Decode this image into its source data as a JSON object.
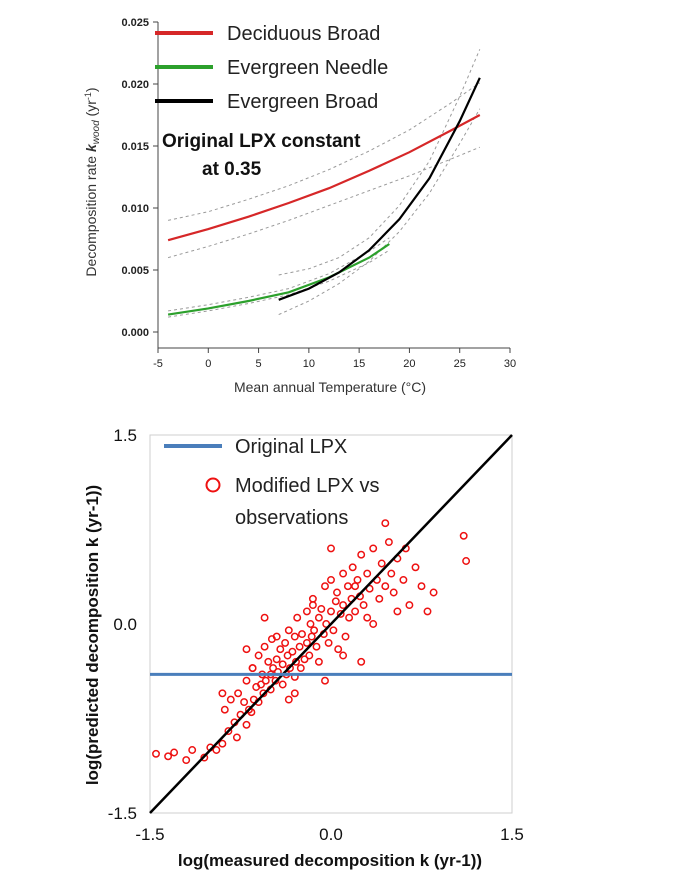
{
  "chart_data": [
    {
      "type": "line",
      "xlabel": "Mean annual Temperature (°C)",
      "ylabel_prefix": "Decomposition rate ",
      "ylabel_k": "k",
      "ylabel_sub": "wood",
      "ylabel_unit": " (yr",
      "ylabel_unit_sup": "-1",
      "ylabel_unit_close": ")",
      "xlim": [
        -5,
        30
      ],
      "ylim": [
        0,
        0.025
      ],
      "xticks": [
        "-5",
        "0",
        "5",
        "10",
        "15",
        "20",
        "25",
        "30"
      ],
      "yticks": [
        "0.000",
        "0.005",
        "0.010",
        "0.015",
        "0.020",
        "0.025"
      ],
      "annotation": [
        "Original LPX constant",
        "at 0.35"
      ],
      "legend_position": "top-left",
      "series": [
        {
          "name": "Deciduous Broad",
          "color": "#d62728",
          "x": [
            -4,
            0,
            4,
            8,
            12,
            16,
            20,
            24,
            27
          ],
          "y": [
            0.0074,
            0.0083,
            0.0093,
            0.0104,
            0.0116,
            0.013,
            0.0145,
            0.0162,
            0.0175
          ],
          "ci_lower": [
            0.006,
            0.0069,
            0.0079,
            0.009,
            0.0102,
            0.0114,
            0.0126,
            0.0139,
            0.0149
          ],
          "ci_upper": [
            0.009,
            0.0097,
            0.0107,
            0.0118,
            0.0131,
            0.0146,
            0.0163,
            0.0184,
            0.0201
          ]
        },
        {
          "name": "Evergreen Needle",
          "color": "#2ca02c",
          "x": [
            -4,
            0,
            4,
            8,
            12,
            16,
            18
          ],
          "y": [
            0.0014,
            0.0019,
            0.0025,
            0.0032,
            0.0044,
            0.006,
            0.0071
          ],
          "ci_lower": [
            0.0012,
            0.0017,
            0.0023,
            0.003,
            0.0041,
            0.0056,
            0.0066
          ],
          "ci_upper": [
            0.0017,
            0.0022,
            0.0028,
            0.0035,
            0.0047,
            0.0065,
            0.0076
          ]
        },
        {
          "name": "Evergreen Broad",
          "color": "#000000",
          "x": [
            7,
            10,
            13,
            16,
            19,
            22,
            25,
            27
          ],
          "y": [
            0.0026,
            0.0035,
            0.0048,
            0.0066,
            0.0091,
            0.0124,
            0.017,
            0.0205
          ],
          "ci_lower": [
            0.0014,
            0.0025,
            0.0039,
            0.0057,
            0.0081,
            0.0112,
            0.0152,
            0.018
          ],
          "ci_upper": [
            0.0046,
            0.0051,
            0.006,
            0.0076,
            0.0102,
            0.0138,
            0.019,
            0.0228
          ]
        }
      ]
    },
    {
      "type": "scatter",
      "xlabel": "log(measured decomposition k (yr-1))",
      "ylabel": "log(predicted decomposition k (yr-1))",
      "xlim": [
        -1.5,
        1.5
      ],
      "ylim": [
        -1.5,
        1.5
      ],
      "xticks": [
        "-1.5",
        "0.0",
        "1.5"
      ],
      "yticks": [
        "-1.5",
        "0.0",
        "1.5"
      ],
      "legend_position": "top-left",
      "original_lpx": {
        "name": "Original LPX",
        "y": -0.4,
        "color": "#4a7ebb"
      },
      "one_to_one_line": {
        "color": "#000000",
        "points": [
          [
            -1.5,
            -1.5
          ],
          [
            1.5,
            1.5
          ]
        ]
      },
      "modified_lpx": {
        "name": "Modified LPX vs observations",
        "legend_lines": [
          "Modified LPX vs",
          "observations"
        ],
        "color": "#ee1111",
        "x": [
          -1.45,
          -1.35,
          -1.3,
          -1.2,
          -1.15,
          -1.05,
          -1.0,
          -0.95,
          -0.9,
          -0.88,
          -0.85,
          -0.83,
          -0.8,
          -0.78,
          -0.77,
          -0.75,
          -0.72,
          -0.7,
          -0.7,
          -0.68,
          -0.66,
          -0.65,
          -0.64,
          -0.62,
          -0.6,
          -0.6,
          -0.58,
          -0.57,
          -0.56,
          -0.55,
          -0.54,
          -0.52,
          -0.5,
          -0.5,
          -0.49,
          -0.48,
          -0.46,
          -0.45,
          -0.44,
          -0.42,
          -0.4,
          -0.4,
          -0.38,
          -0.37,
          -0.36,
          -0.35,
          -0.34,
          -0.32,
          -0.3,
          -0.3,
          -0.29,
          -0.28,
          -0.26,
          -0.25,
          -0.24,
          -0.22,
          -0.2,
          -0.2,
          -0.18,
          -0.17,
          -0.16,
          -0.15,
          -0.14,
          -0.12,
          -0.1,
          -0.1,
          -0.08,
          -0.06,
          -0.05,
          -0.04,
          -0.02,
          0.0,
          0.0,
          0.02,
          0.04,
          0.05,
          0.06,
          0.08,
          0.1,
          0.1,
          0.12,
          0.14,
          0.15,
          0.17,
          0.18,
          0.2,
          0.22,
          0.24,
          0.25,
          0.27,
          0.3,
          0.3,
          0.32,
          0.35,
          0.38,
          0.4,
          0.42,
          0.45,
          0.48,
          0.5,
          0.52,
          0.55,
          0.6,
          0.62,
          0.65,
          0.7,
          0.75,
          0.8,
          0.85,
          1.1,
          1.12,
          -0.9,
          -0.7,
          -0.55,
          -0.45,
          -0.3,
          -0.15,
          -0.05,
          0.1,
          0.2,
          0.35,
          0.45,
          0.55,
          -0.65,
          -0.35,
          0.0,
          0.25
        ],
        "y": [
          -1.03,
          -1.05,
          -1.02,
          -1.08,
          -1.0,
          -1.06,
          -0.98,
          -1.0,
          -0.95,
          -0.68,
          -0.85,
          -0.6,
          -0.78,
          -0.9,
          -0.55,
          -0.72,
          -0.62,
          -0.8,
          -0.45,
          -0.68,
          -0.7,
          -0.35,
          -0.6,
          -0.5,
          -0.25,
          -0.62,
          -0.48,
          -0.4,
          -0.55,
          -0.18,
          -0.45,
          -0.3,
          -0.52,
          -0.4,
          -0.12,
          -0.35,
          -0.45,
          -0.28,
          -0.38,
          -0.2,
          -0.48,
          -0.32,
          -0.15,
          -0.4,
          -0.25,
          -0.05,
          -0.35,
          -0.22,
          -0.42,
          -0.1,
          -0.3,
          0.05,
          -0.18,
          -0.35,
          -0.08,
          -0.28,
          -0.15,
          0.1,
          -0.25,
          0.0,
          -0.1,
          0.2,
          -0.05,
          -0.18,
          0.05,
          -0.3,
          0.12,
          -0.08,
          0.3,
          0.0,
          -0.15,
          0.1,
          0.35,
          -0.05,
          0.18,
          0.25,
          -0.2,
          0.08,
          0.4,
          0.15,
          -0.1,
          0.3,
          0.05,
          0.2,
          0.45,
          0.1,
          0.35,
          0.22,
          0.55,
          0.15,
          0.4,
          0.05,
          0.28,
          0.6,
          0.35,
          0.2,
          0.48,
          0.3,
          0.65,
          0.4,
          0.25,
          0.52,
          0.35,
          0.6,
          0.15,
          0.45,
          0.3,
          0.1,
          0.25,
          0.7,
          0.5,
          -0.55,
          -0.2,
          0.05,
          -0.1,
          -0.55,
          0.15,
          -0.45,
          -0.25,
          0.3,
          0.0,
          0.8,
          0.1,
          -0.35,
          -0.6,
          0.6,
          -0.3
        ]
      }
    }
  ]
}
